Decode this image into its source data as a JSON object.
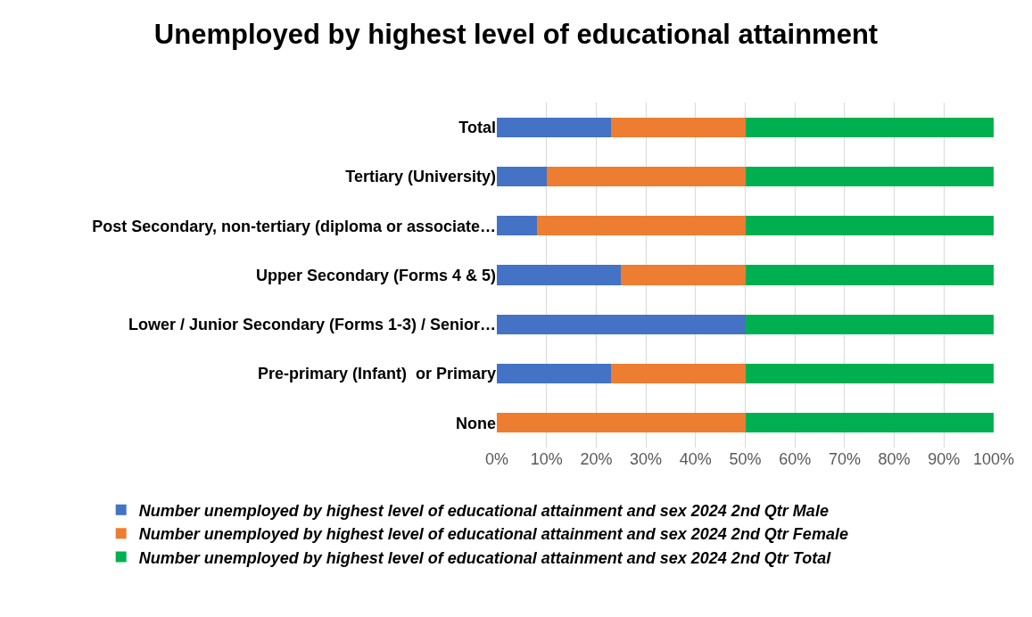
{
  "chart_data": {
    "type": "bar",
    "title": "Unemployed by highest level of educational attainment",
    "orientation": "horizontal",
    "stacked": true,
    "categories": [
      "Total",
      "Tertiary (University)",
      "Post Secondary, non-tertiary (diploma or associate…",
      "Upper Secondary (Forms 4 & 5)",
      "Lower / Junior Secondary (Forms 1-3) / Senior…",
      "Pre-primary (Infant)  or Primary",
      "None"
    ],
    "series": [
      {
        "name": "Number unemployed by highest level of educational attainment and sex 2024 2nd Qtr Male",
        "color": "#4472c4",
        "values": [
          23,
          10,
          8,
          25,
          50,
          23,
          0
        ]
      },
      {
        "name": "Number unemployed by highest level of educational attainment and sex 2024 2nd Qtr Female",
        "color": "#ed7d31",
        "values": [
          27,
          40,
          42,
          25,
          0,
          27,
          50
        ]
      },
      {
        "name": "Number unemployed by highest level of educational attainment and sex 2024 2nd Qtr Total",
        "color": "#00b050",
        "values": [
          50,
          50,
          50,
          50,
          50,
          50,
          50
        ]
      }
    ],
    "xlim": [
      0,
      100
    ],
    "xticks": [
      {
        "value": 0,
        "label": "0%"
      },
      {
        "value": 10,
        "label": "10%"
      },
      {
        "value": 20,
        "label": "20%"
      },
      {
        "value": 30,
        "label": "30%"
      },
      {
        "value": 40,
        "label": "40%"
      },
      {
        "value": 50,
        "label": "50%"
      },
      {
        "value": 60,
        "label": "60%"
      },
      {
        "value": 70,
        "label": "70%"
      },
      {
        "value": 80,
        "label": "80%"
      },
      {
        "value": 90,
        "label": "90%"
      },
      {
        "value": 100,
        "label": "100%"
      }
    ],
    "grid": "x",
    "legend": "bottom"
  }
}
